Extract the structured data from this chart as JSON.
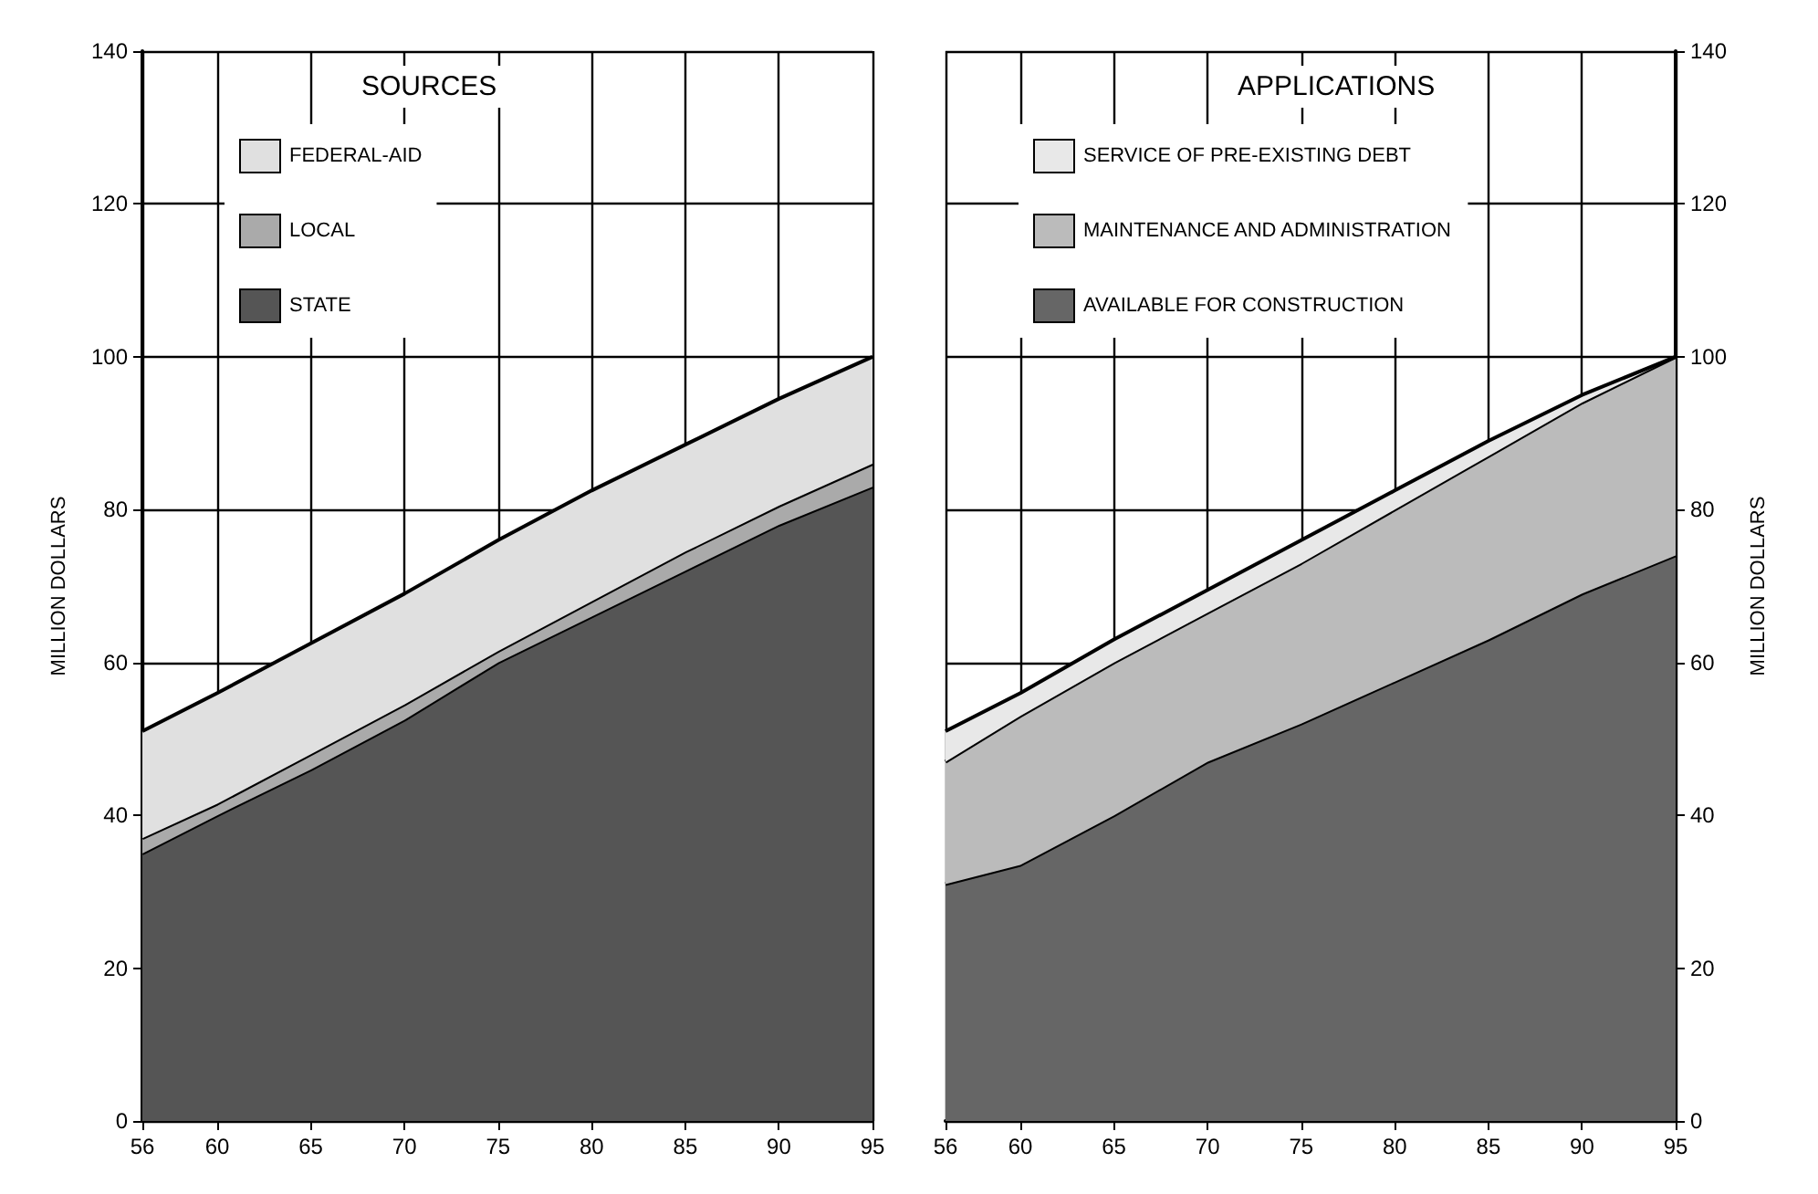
{
  "chart_data": [
    {
      "type": "area",
      "stacked": true,
      "legend_title": "SOURCES",
      "ylabel": "MILLION DOLLARS",
      "x": [
        56,
        60,
        65,
        70,
        75,
        80,
        85,
        90,
        95
      ],
      "xlim": [
        56,
        95
      ],
      "xticks": [
        56,
        60,
        65,
        70,
        75,
        80,
        85,
        90,
        95
      ],
      "ylim": [
        0,
        140
      ],
      "yticks": [
        0,
        20,
        40,
        60,
        80,
        100,
        120,
        140
      ],
      "grid": true,
      "legend": "top left",
      "series": [
        {
          "name": "STATE",
          "color": "#555555",
          "values": [
            35,
            40,
            46,
            52.5,
            60,
            66,
            72,
            78,
            83
          ]
        },
        {
          "name": "LOCAL",
          "color": "#aaaaaa",
          "values": [
            2,
            1.5,
            2,
            2,
            1.5,
            2,
            2.5,
            2.5,
            3
          ]
        },
        {
          "name": "FEDERAL-AID",
          "color": "#e0e0e0",
          "values": [
            14,
            14.5,
            14.5,
            14.5,
            14.5,
            14.5,
            14,
            14,
            14
          ]
        }
      ]
    },
    {
      "type": "area",
      "stacked": true,
      "legend_title": "APPLICATIONS",
      "y2label": "MILLION DOLLARS",
      "x": [
        56,
        60,
        65,
        70,
        75,
        80,
        85,
        90,
        95
      ],
      "xlim": [
        56,
        95
      ],
      "xticks": [
        56,
        60,
        65,
        70,
        75,
        80,
        85,
        90,
        95
      ],
      "y2lim": [
        0,
        140
      ],
      "y2ticks": [
        0,
        20,
        40,
        60,
        80,
        100,
        120,
        140
      ],
      "grid": true,
      "legend": "top left",
      "series": [
        {
          "name": "AVAILABLE FOR CONSTRUCTION",
          "color": "#666666",
          "axis": "y2",
          "values": [
            31,
            33.5,
            40,
            47,
            52,
            57.5,
            63,
            69,
            74
          ]
        },
        {
          "name": "MAINTENANCE AND ADMINISTRATION",
          "color": "#bbbbbb",
          "axis": "y2",
          "values": [
            16,
            19.5,
            20,
            19.5,
            21,
            22.5,
            24,
            25,
            26
          ]
        },
        {
          "name": "SERVICE OF PRE-EXISTING DEBT",
          "color": "#e8e8e8",
          "axis": "y2",
          "values": [
            4,
            3,
            3,
            3,
            3,
            2.5,
            2,
            1,
            0
          ]
        }
      ]
    }
  ]
}
